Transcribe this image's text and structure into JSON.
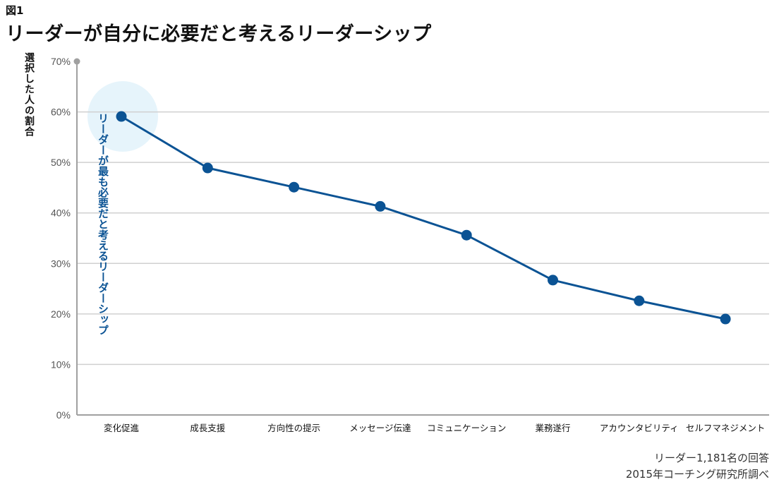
{
  "figure_label": "図1",
  "title": "リーダーが自分に必要だと考えるリーダーシップ",
  "source_lines": [
    "リーダー1,181名の回答",
    "2015年コーチング研究所調べ"
  ],
  "colors": {
    "line": "#0b5394",
    "grid": "#d0d0d0",
    "axis": "#a0a0a0",
    "highlight": "#e6f4fb"
  },
  "chart_data": {
    "type": "line",
    "title": "リーダーが自分に必要だと考えるリーダーシップ",
    "xlabel": "",
    "ylabel": "選択した人の割合",
    "ylim": [
      0,
      70
    ],
    "yticks": [
      0,
      10,
      20,
      30,
      40,
      50,
      60,
      70
    ],
    "ytick_labels": [
      "0%",
      "10%",
      "20%",
      "30%",
      "40%",
      "50%",
      "60%",
      "70%"
    ],
    "grid": true,
    "categories": [
      "変化促進",
      "成長支援",
      "方向性の提示",
      "メッセージ伝達",
      "コミュニケーション",
      "業務遂行",
      "アカウンタビリティ",
      "セルフマネジメント"
    ],
    "series": [
      {
        "name": "選択した人の割合",
        "values": [
          59.1,
          48.9,
          45.1,
          41.3,
          35.6,
          26.7,
          22.6,
          19.0
        ]
      }
    ],
    "annotation": {
      "text": "リーダーが最も必要だと考えるリーダーシップ",
      "target_category": "変化促進"
    }
  }
}
